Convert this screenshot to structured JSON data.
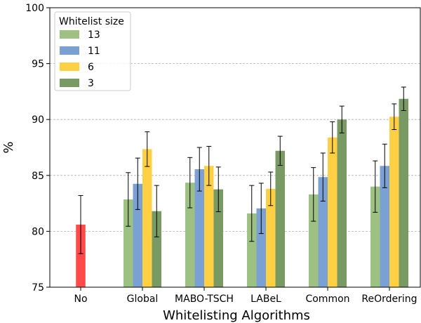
{
  "chart_data": {
    "type": "bar",
    "xlabel": "Whitelisting Algorithms",
    "ylabel": "%",
    "ylim": [
      75,
      100
    ],
    "yticks": [
      "75",
      "80",
      "85",
      "90",
      "95",
      "100"
    ],
    "grid": "horizontal dashed",
    "legend_title": "Whitelist size",
    "legend_position": "top-left",
    "categories": [
      "No",
      "Global",
      "MABO-TSCH",
      "LABeL",
      "Common",
      "ReOrdering"
    ],
    "baseline": {
      "category": "No",
      "value": 80.6,
      "err": 2.6,
      "color": "#ff4040"
    },
    "series": [
      {
        "name": "13",
        "color": "#9dc183",
        "values": [
          null,
          82.85,
          84.35,
          81.6,
          83.3,
          84.0
        ],
        "errors": [
          null,
          2.4,
          2.25,
          2.5,
          2.4,
          2.3
        ]
      },
      {
        "name": "11",
        "color": "#7aa0d4",
        "values": [
          null,
          84.25,
          85.55,
          82.05,
          84.85,
          85.85
        ],
        "errors": [
          null,
          2.3,
          1.95,
          2.25,
          2.15,
          1.95
        ]
      },
      {
        "name": "6",
        "color": "#ffd043",
        "values": [
          null,
          87.35,
          85.85,
          83.8,
          88.4,
          90.25
        ],
        "errors": [
          null,
          1.55,
          1.75,
          1.5,
          1.4,
          1.15
        ]
      },
      {
        "name": "3",
        "color": "#7a9a65",
        "values": [
          null,
          81.8,
          83.75,
          87.2,
          90.0,
          91.85
        ],
        "errors": [
          null,
          2.3,
          2.0,
          1.3,
          1.2,
          1.05
        ]
      }
    ]
  }
}
